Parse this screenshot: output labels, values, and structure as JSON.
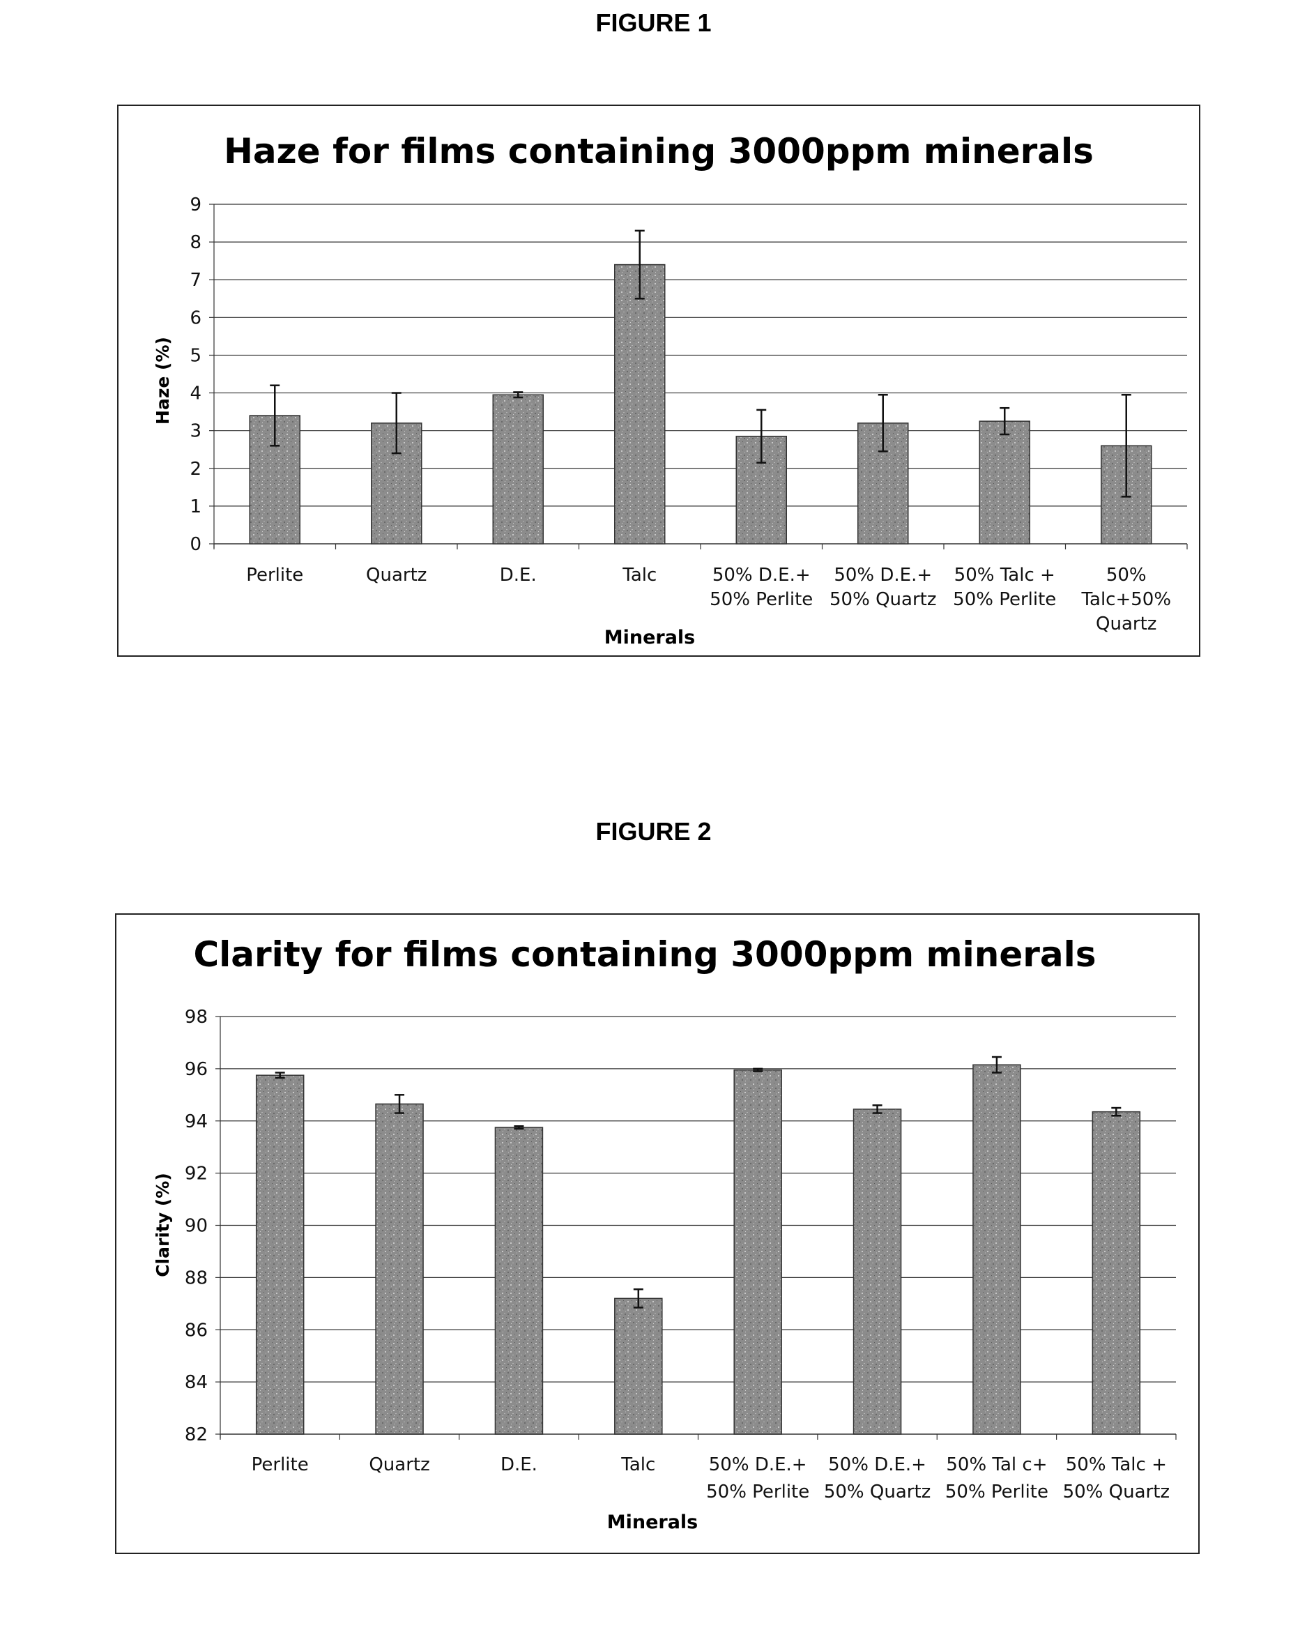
{
  "figures": [
    {
      "figure_label": "FIGURE 1",
      "chart_data": {
        "type": "bar",
        "title": "Haze for films containing 3000ppm minerals",
        "xlabel": "Minerals",
        "ylabel": "Haze (%)",
        "ylim": [
          0,
          9
        ],
        "yticks": [
          "0",
          "1",
          "2",
          "3",
          "4",
          "5",
          "6",
          "7",
          "8",
          "9"
        ],
        "grid": true,
        "legend": "none",
        "categories": [
          [
            "Perlite"
          ],
          [
            "Quartz"
          ],
          [
            "D.E."
          ],
          [
            "Talc"
          ],
          [
            "50% D.E.+",
            "50% Perlite"
          ],
          [
            "50% D.E.+",
            "50% Quartz"
          ],
          [
            "50% Talc +",
            "50% Perlite"
          ],
          [
            "50%",
            "Talc+50%",
            "Quartz"
          ]
        ],
        "values": [
          3.4,
          3.2,
          3.95,
          7.4,
          2.85,
          3.2,
          3.25,
          2.6
        ],
        "errors": [
          0.8,
          0.8,
          0.07,
          0.9,
          0.7,
          0.75,
          0.35,
          1.35
        ],
        "bar_color": "#8a8a8a"
      }
    },
    {
      "figure_label": "FIGURE 2",
      "chart_data": {
        "type": "bar",
        "title": "Clarity for films containing 3000ppm minerals",
        "xlabel": "Minerals",
        "ylabel": "Clarity (%)",
        "ylim": [
          82,
          98
        ],
        "yticks": [
          "82",
          "84",
          "86",
          "88",
          "90",
          "92",
          "94",
          "96",
          "98"
        ],
        "grid": true,
        "legend": "none",
        "categories": [
          [
            "Perlite"
          ],
          [
            "Quartz"
          ],
          [
            "D.E."
          ],
          [
            "Talc"
          ],
          [
            "50% D.E.+",
            "50% Perlite"
          ],
          [
            "50% D.E.+",
            "50% Quartz"
          ],
          [
            "50% Tal c+",
            "50% Perlite"
          ],
          [
            "50% Talc +",
            "50% Quartz"
          ]
        ],
        "values": [
          95.75,
          94.65,
          93.75,
          87.2,
          95.95,
          94.45,
          96.15,
          94.35
        ],
        "errors": [
          0.1,
          0.35,
          0.05,
          0.35,
          0.05,
          0.15,
          0.3,
          0.15
        ],
        "bar_color": "#8a8a8a"
      }
    }
  ]
}
